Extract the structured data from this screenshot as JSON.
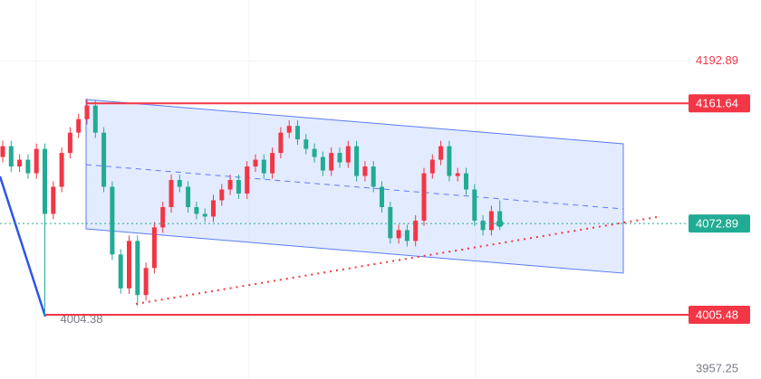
{
  "chart_data": {
    "type": "candlestick",
    "open": [
      4122,
      4130,
      4115,
      4120,
      4110,
      4128,
      4080,
      4100,
      4125,
      4140,
      4150,
      4160,
      4140,
      4100,
      4050,
      4025,
      4060,
      4020,
      4040,
      4070,
      4085,
      4105,
      4100,
      4085,
      4080,
      4078,
      4090,
      4098,
      4105,
      4095,
      4115,
      4120,
      4110,
      4125,
      4140,
      4145,
      4135,
      4128,
      4122,
      4112,
      4125,
      4118,
      4130,
      4108,
      4115,
      4100,
      4085,
      4062,
      4068,
      4060,
      4075,
      4110,
      4120,
      4130,
      4108,
      4110,
      4098,
      4075,
      4068,
      4082
    ],
    "high": [
      4134,
      4134,
      4124,
      4124,
      4132,
      4132,
      4104,
      4129,
      4144,
      4154,
      4165,
      4164,
      4144,
      4104,
      4054,
      4064,
      4064,
      4044,
      4074,
      4089,
      4109,
      4109,
      4104,
      4089,
      4084,
      4094,
      4102,
      4109,
      4109,
      4119,
      4124,
      4124,
      4129,
      4144,
      4149,
      4149,
      4139,
      4132,
      4126,
      4129,
      4129,
      4134,
      4134,
      4119,
      4119,
      4104,
      4089,
      4072,
      4072,
      4079,
      4114,
      4124,
      4134,
      4134,
      4114,
      4114,
      4102,
      4079,
      4086,
      4090
    ],
    "low": [
      4118,
      4111,
      4111,
      4106,
      4106,
      4004.38,
      4076,
      4096,
      4121,
      4136,
      4146,
      4136,
      4096,
      4046,
      4021,
      4021,
      4012,
      4016,
      4036,
      4066,
      4081,
      4096,
      4081,
      4076,
      4074,
      4074,
      4086,
      4094,
      4091,
      4091,
      4111,
      4106,
      4106,
      4121,
      4136,
      4131,
      4124,
      4118,
      4108,
      4108,
      4114,
      4114,
      4104,
      4104,
      4096,
      4081,
      4058,
      4058,
      4056,
      4056,
      4071,
      4106,
      4116,
      4104,
      4104,
      4094,
      4071,
      4064,
      4064,
      4068
    ],
    "close": [
      4130,
      4115,
      4120,
      4110,
      4128,
      4080,
      4100,
      4125,
      4140,
      4150,
      4160,
      4140,
      4100,
      4050,
      4025,
      4060,
      4020,
      4040,
      4070,
      4085,
      4105,
      4100,
      4085,
      4080,
      4078,
      4090,
      4098,
      4105,
      4095,
      4115,
      4120,
      4110,
      4125,
      4140,
      4145,
      4135,
      4128,
      4122,
      4112,
      4125,
      4118,
      4130,
      4108,
      4115,
      4100,
      4085,
      4062,
      4068,
      4060,
      4075,
      4110,
      4120,
      4130,
      4108,
      4110,
      4098,
      4075,
      4068,
      4082,
      4072.89
    ],
    "up_color": "#f23645",
    "down_color": "#22ab94",
    "ylim": [
      3958,
      4238
    ],
    "yticks": [
      4192.89,
      3957.25
    ],
    "levels": [
      {
        "value": 4161.64,
        "color": "#f23645"
      },
      {
        "value": 4005.48,
        "color": "#f23645"
      }
    ],
    "last_price": {
      "value": 4072.89,
      "color": "#22ab94"
    }
  }
}
